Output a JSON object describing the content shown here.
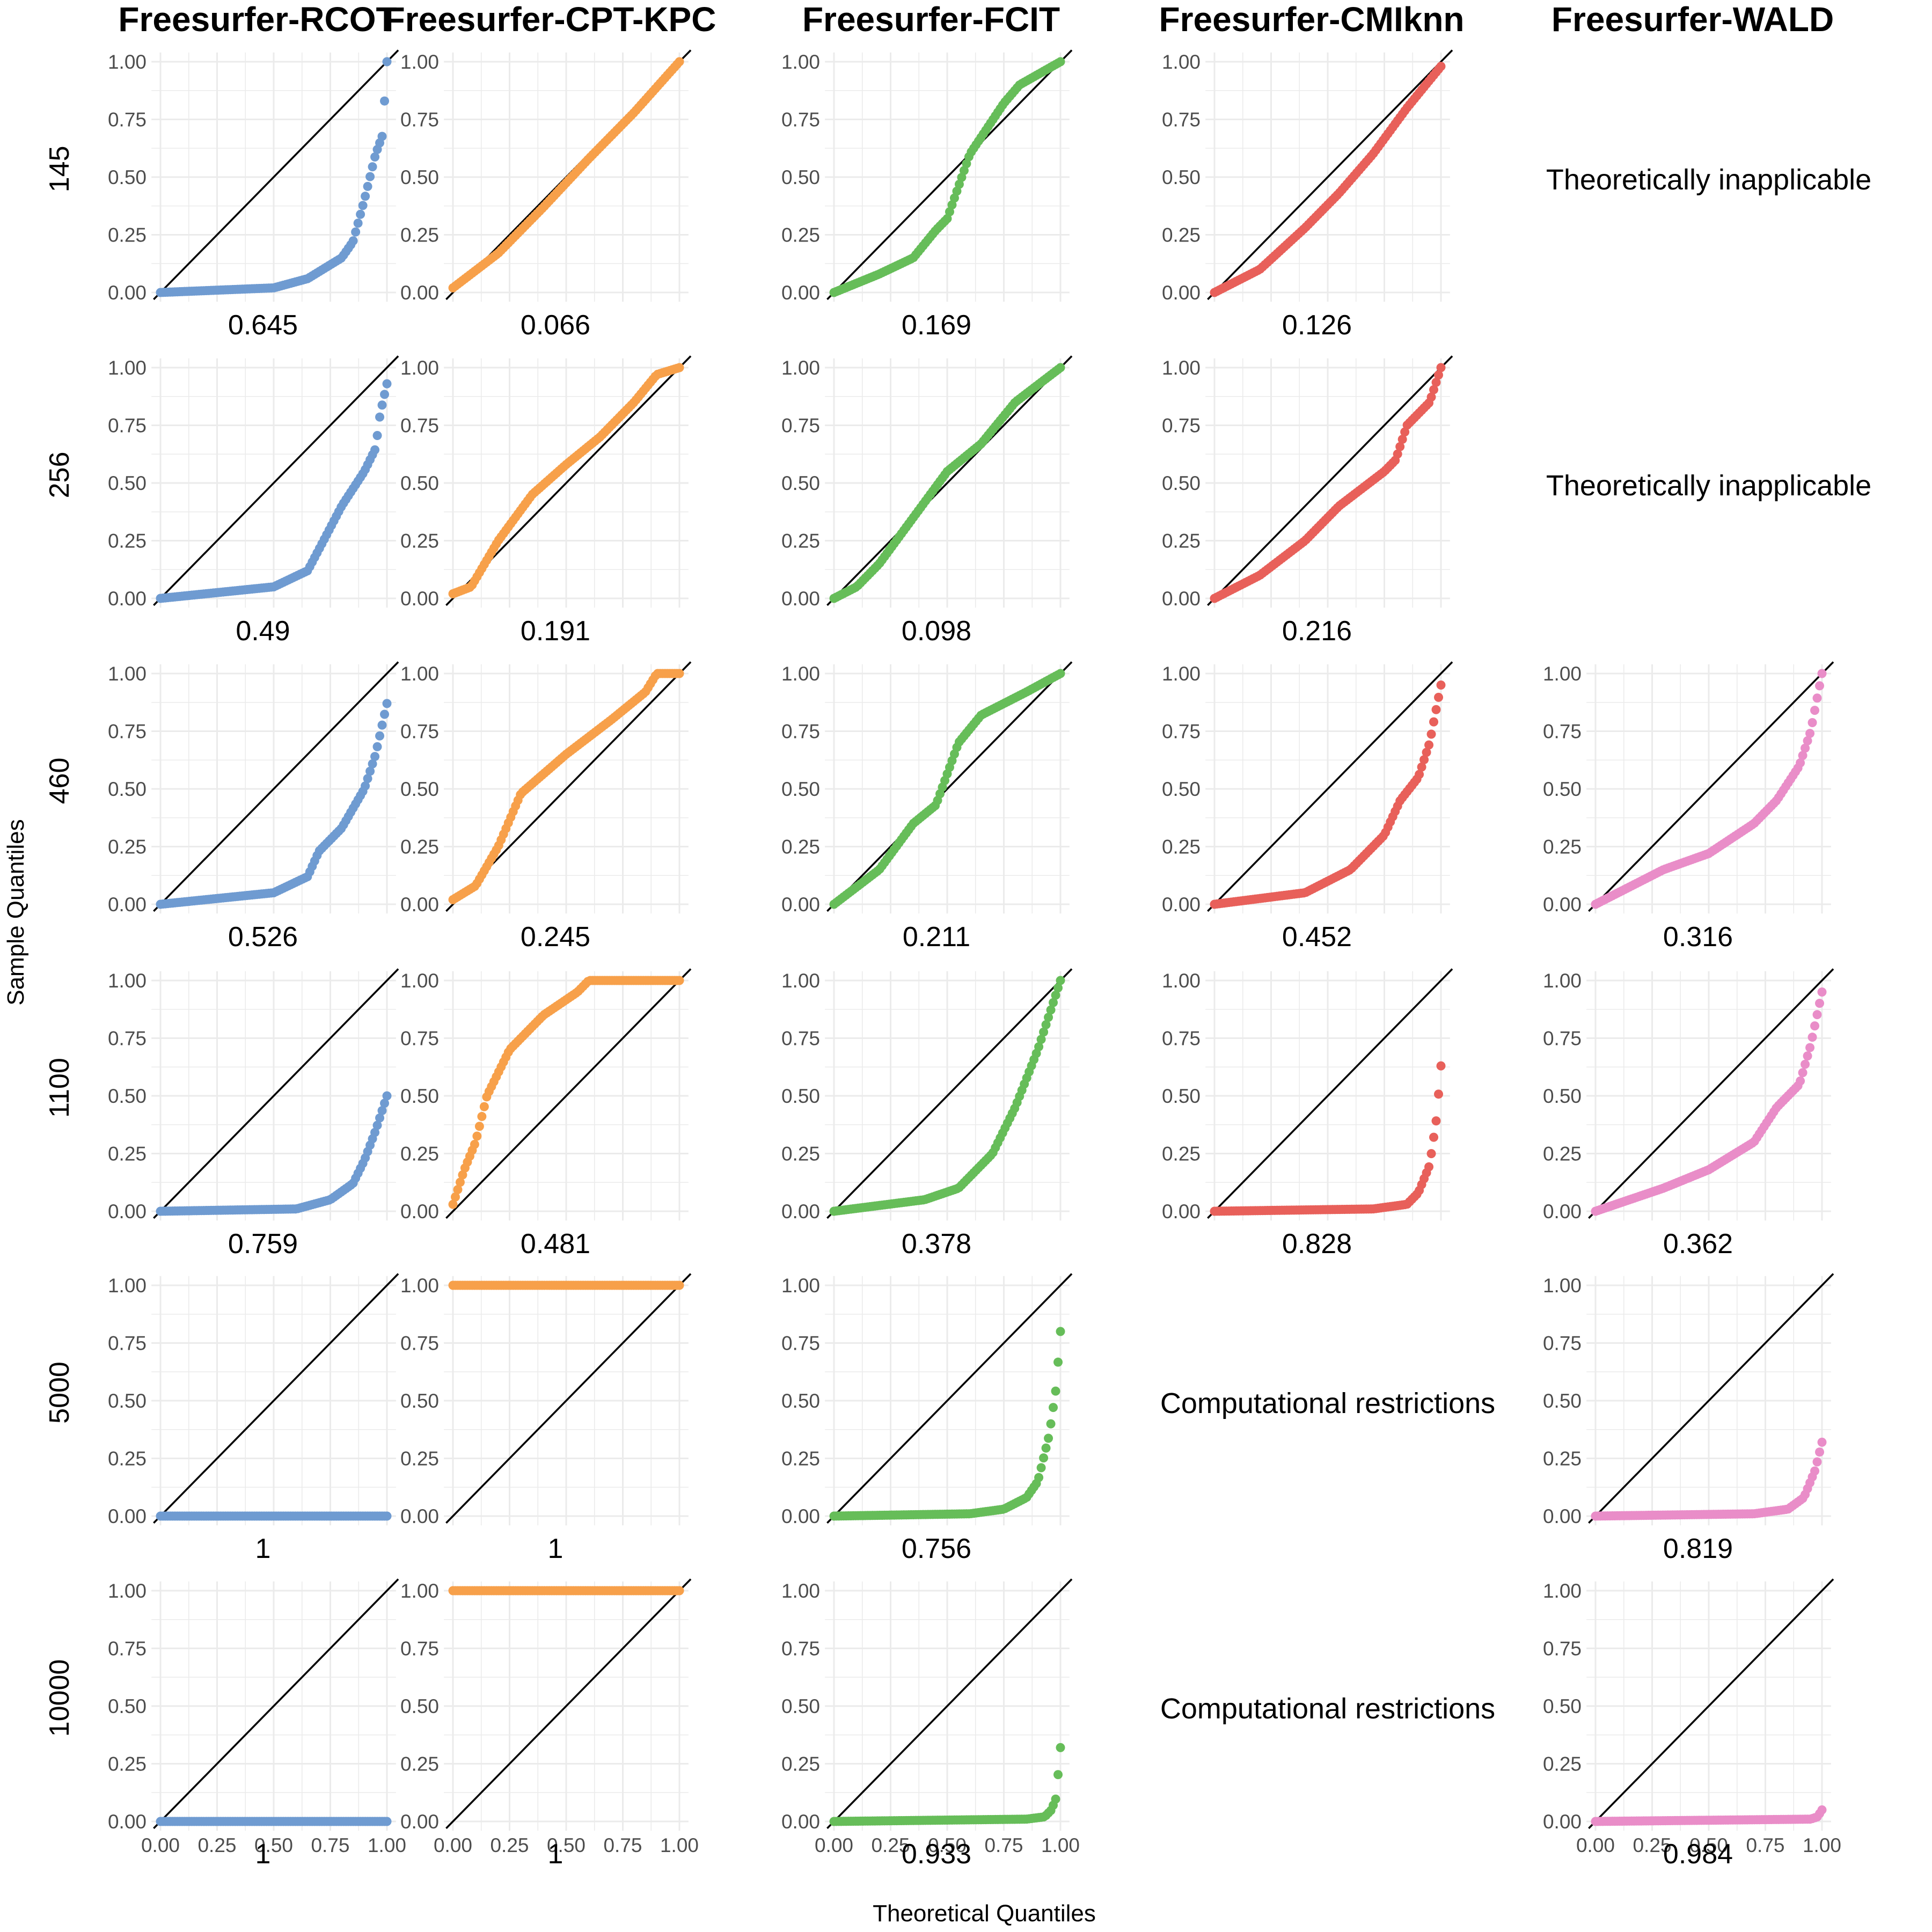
{
  "figure": {
    "x_axis_title": "Theoretical Quantiles",
    "y_axis_title": "Sample Quantiles"
  },
  "chart_data": {
    "type": "scatter",
    "subtype": "qq-grid",
    "columns": [
      "Freesurfer-RCOT",
      "Freesurfer-CPT-KPC",
      "Freesurfer-FCIT",
      "Freesurfer-CMIknn",
      "Freesurfer-WALD"
    ],
    "rows": [
      "145",
      "256",
      "460",
      "1100",
      "5000",
      "10000"
    ],
    "series_colors": [
      "#6f9bd1",
      "#f7a04a",
      "#66bd59",
      "#e8605a",
      "#e98dc8"
    ],
    "xlim": [
      0,
      1
    ],
    "ylim": [
      0,
      1
    ],
    "x_ticks": [
      "0.00",
      "0.25",
      "0.50",
      "0.75",
      "1.00"
    ],
    "y_ticks": [
      "0.00",
      "0.25",
      "0.50",
      "0.75",
      "1.00"
    ],
    "reference_line": "y = x",
    "grid": true,
    "panels": [
      [
        {
          "value": "0.645",
          "curve": [
            [
              0,
              0
            ],
            [
              0.5,
              0.02
            ],
            [
              0.65,
              0.06
            ],
            [
              0.8,
              0.15
            ],
            [
              0.85,
              0.22
            ],
            [
              0.9,
              0.4
            ],
            [
              0.95,
              0.6
            ],
            [
              0.98,
              0.68
            ],
            [
              1,
              1
            ]
          ]
        },
        {
          "value": "0.066",
          "curve": [
            [
              0,
              0.02
            ],
            [
              0.2,
              0.17
            ],
            [
              0.4,
              0.37
            ],
            [
              0.6,
              0.58
            ],
            [
              0.8,
              0.78
            ],
            [
              1,
              1
            ]
          ]
        },
        {
          "value": "0.169",
          "curve": [
            [
              0,
              0
            ],
            [
              0.2,
              0.08
            ],
            [
              0.35,
              0.15
            ],
            [
              0.45,
              0.27
            ],
            [
              0.5,
              0.32
            ],
            [
              0.6,
              0.6
            ],
            [
              0.75,
              0.82
            ],
            [
              0.82,
              0.9
            ],
            [
              1,
              1
            ]
          ]
        },
        {
          "value": "0.126",
          "curve": [
            [
              0,
              0
            ],
            [
              0.2,
              0.1
            ],
            [
              0.4,
              0.28
            ],
            [
              0.55,
              0.43
            ],
            [
              0.7,
              0.6
            ],
            [
              0.85,
              0.8
            ],
            [
              1,
              0.98
            ]
          ]
        },
        {
          "note": "Theoretically inapplicable"
        }
      ],
      [
        {
          "value": "0.49",
          "curve": [
            [
              0,
              0
            ],
            [
              0.5,
              0.05
            ],
            [
              0.65,
              0.12
            ],
            [
              0.72,
              0.25
            ],
            [
              0.8,
              0.4
            ],
            [
              0.9,
              0.55
            ],
            [
              0.95,
              0.65
            ],
            [
              0.97,
              0.8
            ],
            [
              1,
              0.93
            ]
          ]
        },
        {
          "value": "0.191",
          "curve": [
            [
              0,
              0.02
            ],
            [
              0.08,
              0.05
            ],
            [
              0.2,
              0.25
            ],
            [
              0.35,
              0.45
            ],
            [
              0.5,
              0.58
            ],
            [
              0.65,
              0.7
            ],
            [
              0.8,
              0.85
            ],
            [
              0.9,
              0.97
            ],
            [
              1,
              1
            ]
          ]
        },
        {
          "value": "0.098",
          "curve": [
            [
              0,
              0
            ],
            [
              0.1,
              0.05
            ],
            [
              0.2,
              0.15
            ],
            [
              0.35,
              0.35
            ],
            [
              0.5,
              0.55
            ],
            [
              0.65,
              0.67
            ],
            [
              0.8,
              0.85
            ],
            [
              1,
              1
            ]
          ]
        },
        {
          "value": "0.216",
          "curve": [
            [
              0,
              0
            ],
            [
              0.2,
              0.1
            ],
            [
              0.4,
              0.25
            ],
            [
              0.55,
              0.4
            ],
            [
              0.75,
              0.55
            ],
            [
              0.8,
              0.6
            ],
            [
              0.85,
              0.75
            ],
            [
              0.95,
              0.85
            ],
            [
              1,
              1
            ]
          ]
        },
        {
          "note": "Theoretically inapplicable"
        }
      ],
      [
        {
          "value": "0.526",
          "curve": [
            [
              0,
              0
            ],
            [
              0.5,
              0.05
            ],
            [
              0.65,
              0.12
            ],
            [
              0.7,
              0.23
            ],
            [
              0.8,
              0.33
            ],
            [
              0.9,
              0.5
            ],
            [
              0.95,
              0.65
            ],
            [
              1,
              0.87
            ]
          ]
        },
        {
          "value": "0.245",
          "curve": [
            [
              0,
              0.02
            ],
            [
              0.1,
              0.08
            ],
            [
              0.2,
              0.25
            ],
            [
              0.3,
              0.48
            ],
            [
              0.5,
              0.65
            ],
            [
              0.7,
              0.8
            ],
            [
              0.85,
              0.92
            ],
            [
              0.9,
              1
            ],
            [
              1,
              1
            ]
          ]
        },
        {
          "value": "0.211",
          "curve": [
            [
              0,
              0
            ],
            [
              0.2,
              0.15
            ],
            [
              0.35,
              0.35
            ],
            [
              0.45,
              0.43
            ],
            [
              0.55,
              0.7
            ],
            [
              0.65,
              0.82
            ],
            [
              0.85,
              0.92
            ],
            [
              1,
              1
            ]
          ]
        },
        {
          "value": "0.452",
          "curve": [
            [
              0,
              0
            ],
            [
              0.4,
              0.05
            ],
            [
              0.6,
              0.15
            ],
            [
              0.75,
              0.3
            ],
            [
              0.82,
              0.45
            ],
            [
              0.9,
              0.55
            ],
            [
              0.95,
              0.7
            ],
            [
              1,
              0.95
            ]
          ]
        },
        {
          "value": "0.316",
          "curve": [
            [
              0,
              0
            ],
            [
              0.3,
              0.15
            ],
            [
              0.5,
              0.22
            ],
            [
              0.7,
              0.35
            ],
            [
              0.8,
              0.45
            ],
            [
              0.9,
              0.6
            ],
            [
              0.95,
              0.75
            ],
            [
              1,
              1
            ]
          ]
        }
      ],
      [
        {
          "value": "0.759",
          "curve": [
            [
              0,
              0
            ],
            [
              0.6,
              0.01
            ],
            [
              0.75,
              0.05
            ],
            [
              0.85,
              0.12
            ],
            [
              0.9,
              0.22
            ],
            [
              0.95,
              0.35
            ],
            [
              1,
              0.5
            ]
          ]
        },
        {
          "value": "0.481",
          "curve": [
            [
              0,
              0.03
            ],
            [
              0.05,
              0.18
            ],
            [
              0.1,
              0.3
            ],
            [
              0.15,
              0.5
            ],
            [
              0.25,
              0.7
            ],
            [
              0.4,
              0.85
            ],
            [
              0.55,
              0.95
            ],
            [
              0.6,
              1
            ],
            [
              1,
              1
            ]
          ]
        },
        {
          "value": "0.378",
          "curve": [
            [
              0,
              0
            ],
            [
              0.4,
              0.05
            ],
            [
              0.55,
              0.1
            ],
            [
              0.7,
              0.25
            ],
            [
              0.8,
              0.45
            ],
            [
              0.9,
              0.7
            ],
            [
              0.95,
              0.85
            ],
            [
              1,
              1
            ]
          ]
        },
        {
          "value": "0.828",
          "curve": [
            [
              0,
              0
            ],
            [
              0.7,
              0.01
            ],
            [
              0.85,
              0.03
            ],
            [
              0.9,
              0.08
            ],
            [
              0.95,
              0.2
            ],
            [
              0.98,
              0.4
            ],
            [
              1,
              0.63
            ]
          ]
        },
        {
          "value": "0.362",
          "curve": [
            [
              0,
              0
            ],
            [
              0.3,
              0.1
            ],
            [
              0.5,
              0.18
            ],
            [
              0.7,
              0.3
            ],
            [
              0.8,
              0.45
            ],
            [
              0.9,
              0.55
            ],
            [
              0.95,
              0.72
            ],
            [
              1,
              0.95
            ]
          ]
        }
      ],
      [
        {
          "value": "1",
          "curve": [
            [
              0,
              0
            ],
            [
              1,
              0
            ]
          ]
        },
        {
          "value": "1",
          "curve": [
            [
              0,
              1
            ],
            [
              1,
              1
            ]
          ]
        },
        {
          "value": "0.756",
          "curve": [
            [
              0,
              0
            ],
            [
              0.6,
              0.01
            ],
            [
              0.75,
              0.03
            ],
            [
              0.85,
              0.08
            ],
            [
              0.9,
              0.15
            ],
            [
              0.95,
              0.35
            ],
            [
              0.98,
              0.55
            ],
            [
              1,
              0.8
            ]
          ]
        },
        {
          "note": "Computational restrictions"
        },
        {
          "value": "0.819",
          "curve": [
            [
              0,
              0
            ],
            [
              0.7,
              0.01
            ],
            [
              0.85,
              0.03
            ],
            [
              0.92,
              0.08
            ],
            [
              0.97,
              0.2
            ],
            [
              1,
              0.32
            ]
          ]
        }
      ],
      [
        {
          "value": "1",
          "curve": [
            [
              0,
              0
            ],
            [
              1,
              0
            ]
          ]
        },
        {
          "value": "1",
          "curve": [
            [
              0,
              1
            ],
            [
              1,
              1
            ]
          ]
        },
        {
          "value": "0.933",
          "curve": [
            [
              0,
              0
            ],
            [
              0.85,
              0.01
            ],
            [
              0.93,
              0.02
            ],
            [
              0.96,
              0.05
            ],
            [
              0.98,
              0.1
            ],
            [
              1,
              0.32
            ]
          ]
        },
        {
          "note": "Computational restrictions"
        },
        {
          "value": "0.984",
          "curve": [
            [
              0,
              0
            ],
            [
              0.95,
              0.01
            ],
            [
              0.98,
              0.02
            ],
            [
              1,
              0.05
            ]
          ]
        }
      ]
    ]
  }
}
